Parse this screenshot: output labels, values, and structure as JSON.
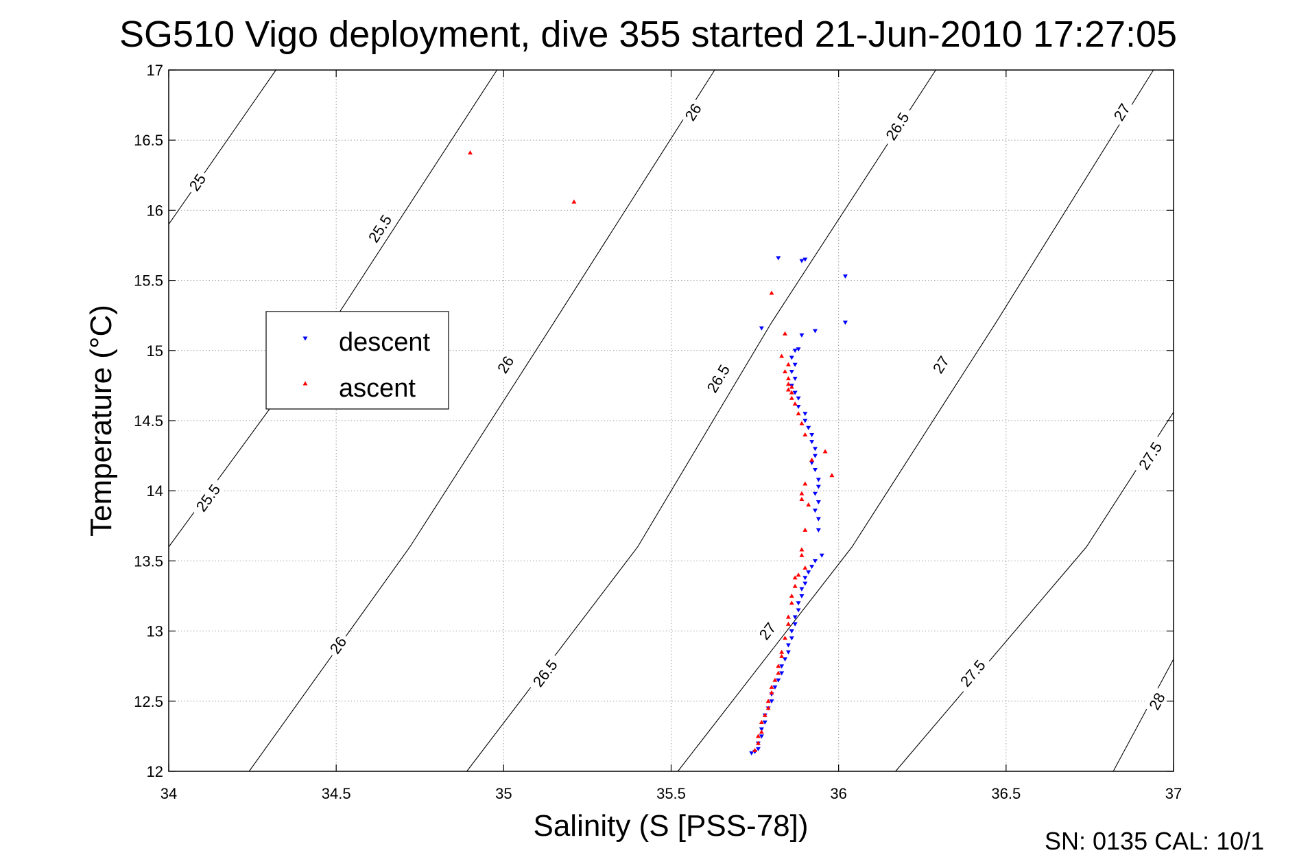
{
  "chart_data": {
    "type": "scatter",
    "title": "SG510 Vigo deployment, dive 355 started 21-Jun-2010 17:27:05",
    "xlabel": "Salinity (S [PSS-78])",
    "ylabel": "Temperature (°C)",
    "xlim": [
      34,
      37
    ],
    "ylim": [
      12,
      17
    ],
    "xticks": [
      34,
      34.5,
      35,
      35.5,
      36,
      36.5,
      37
    ],
    "xtick_labels": [
      "34",
      "34.5",
      "35",
      "35.5",
      "36",
      "36.5",
      "37"
    ],
    "yticks": [
      12,
      12.5,
      13,
      13.5,
      14,
      14.5,
      15,
      15.5,
      16,
      16.5,
      17
    ],
    "ytick_labels": [
      "12",
      "12.5",
      "13",
      "13.5",
      "14",
      "14.5",
      "15",
      "15.5",
      "16",
      "16.5",
      "17"
    ],
    "grid": true,
    "legend_position": "left, mid-height",
    "series": [
      {
        "name": "descent",
        "marker": "triangle-down",
        "color": "#0000ff",
        "points": [
          [
            35.82,
            15.66
          ],
          [
            35.9,
            15.65
          ],
          [
            35.89,
            15.64
          ],
          [
            36.02,
            15.53
          ],
          [
            35.93,
            15.14
          ],
          [
            36.02,
            15.2
          ],
          [
            35.77,
            15.16
          ],
          [
            35.89,
            15.11
          ],
          [
            35.88,
            15.01
          ],
          [
            35.87,
            15.0
          ],
          [
            35.86,
            14.95
          ],
          [
            35.87,
            14.9
          ],
          [
            35.86,
            14.85
          ],
          [
            35.87,
            14.8
          ],
          [
            35.86,
            14.75
          ],
          [
            35.87,
            14.7
          ],
          [
            35.88,
            14.66
          ],
          [
            35.88,
            14.6
          ],
          [
            35.9,
            14.55
          ],
          [
            35.9,
            14.5
          ],
          [
            35.91,
            14.45
          ],
          [
            35.92,
            14.4
          ],
          [
            35.92,
            14.35
          ],
          [
            35.93,
            14.3
          ],
          [
            35.93,
            14.25
          ],
          [
            35.92,
            14.2
          ],
          [
            35.93,
            14.15
          ],
          [
            35.94,
            14.08
          ],
          [
            35.94,
            14.03
          ],
          [
            35.93,
            13.98
          ],
          [
            35.94,
            13.92
          ],
          [
            35.93,
            13.86
          ],
          [
            35.94,
            13.8
          ],
          [
            35.94,
            13.72
          ],
          [
            35.95,
            13.54
          ],
          [
            35.93,
            13.5
          ],
          [
            35.92,
            13.46
          ],
          [
            35.91,
            13.42
          ],
          [
            35.9,
            13.38
          ],
          [
            35.9,
            13.34
          ],
          [
            35.89,
            13.3
          ],
          [
            35.89,
            13.25
          ],
          [
            35.88,
            13.2
          ],
          [
            35.88,
            13.15
          ],
          [
            35.87,
            13.1
          ],
          [
            35.87,
            13.05
          ],
          [
            35.86,
            13.0
          ],
          [
            35.86,
            12.95
          ],
          [
            35.85,
            12.9
          ],
          [
            35.85,
            12.85
          ],
          [
            35.84,
            12.8
          ],
          [
            35.83,
            12.75
          ],
          [
            35.83,
            12.7
          ],
          [
            35.82,
            12.65
          ],
          [
            35.81,
            12.6
          ],
          [
            35.8,
            12.55
          ],
          [
            35.8,
            12.5
          ],
          [
            35.79,
            12.45
          ],
          [
            35.78,
            12.4
          ],
          [
            35.78,
            12.35
          ],
          [
            35.77,
            12.3
          ],
          [
            35.77,
            12.25
          ],
          [
            35.76,
            12.2
          ],
          [
            35.76,
            12.16
          ],
          [
            35.75,
            12.14
          ],
          [
            35.74,
            12.13
          ]
        ]
      },
      {
        "name": "ascent",
        "marker": "triangle-up",
        "color": "#ff0000",
        "points": [
          [
            34.9,
            16.41
          ],
          [
            35.21,
            16.06
          ],
          [
            35.8,
            15.41
          ],
          [
            35.84,
            15.12
          ],
          [
            35.83,
            14.96
          ],
          [
            35.85,
            14.9
          ],
          [
            35.84,
            14.85
          ],
          [
            35.85,
            14.8
          ],
          [
            35.85,
            14.76
          ],
          [
            35.86,
            14.74
          ],
          [
            35.85,
            14.72
          ],
          [
            35.86,
            14.7
          ],
          [
            35.86,
            14.66
          ],
          [
            35.87,
            14.62
          ],
          [
            35.88,
            14.55
          ],
          [
            35.89,
            14.48
          ],
          [
            35.9,
            14.4
          ],
          [
            35.96,
            14.28
          ],
          [
            35.92,
            14.22
          ],
          [
            35.98,
            14.11
          ],
          [
            35.9,
            14.05
          ],
          [
            35.89,
            13.98
          ],
          [
            35.89,
            13.94
          ],
          [
            35.91,
            13.9
          ],
          [
            35.9,
            13.72
          ],
          [
            35.89,
            13.58
          ],
          [
            35.89,
            13.54
          ],
          [
            35.9,
            13.45
          ],
          [
            35.88,
            13.4
          ],
          [
            35.87,
            13.38
          ],
          [
            35.87,
            13.32
          ],
          [
            35.86,
            13.25
          ],
          [
            35.86,
            13.2
          ],
          [
            35.85,
            13.1
          ],
          [
            35.85,
            13.05
          ],
          [
            35.84,
            12.95
          ],
          [
            35.83,
            12.85
          ],
          [
            35.83,
            12.82
          ],
          [
            35.82,
            12.75
          ],
          [
            35.82,
            12.7
          ],
          [
            35.81,
            12.65
          ],
          [
            35.8,
            12.6
          ],
          [
            35.8,
            12.56
          ],
          [
            35.79,
            12.5
          ],
          [
            35.79,
            12.45
          ],
          [
            35.78,
            12.4
          ],
          [
            35.77,
            12.35
          ],
          [
            35.77,
            12.28
          ],
          [
            35.76,
            12.25
          ],
          [
            35.76,
            12.2
          ],
          [
            35.75,
            12.15
          ]
        ]
      }
    ],
    "density_contours": [
      {
        "label": "25",
        "points": [
          [
            34.0,
            15.9
          ],
          [
            34.32,
            17.0
          ]
        ],
        "labels_at": [
          [
            34.085,
            16.2
          ]
        ]
      },
      {
        "label": "25.5",
        "points": [
          [
            34.0,
            13.6
          ],
          [
            34.49,
            15.2
          ],
          [
            34.98,
            17.0
          ]
        ],
        "labels_at": [
          [
            34.117,
            13.95
          ],
          [
            34.63,
            15.87
          ]
        ]
      },
      {
        "label": "26",
        "points": [
          [
            34.24,
            12.0
          ],
          [
            34.72,
            13.6
          ],
          [
            35.15,
            15.2
          ],
          [
            35.63,
            17.0
          ]
        ],
        "labels_at": [
          [
            34.505,
            12.9
          ],
          [
            35.005,
            14.9
          ],
          [
            35.565,
            16.7
          ]
        ]
      },
      {
        "label": "26.5",
        "points": [
          [
            34.89,
            12.0
          ],
          [
            35.4,
            13.6
          ],
          [
            35.8,
            15.2
          ],
          [
            36.29,
            17.0
          ]
        ],
        "labels_at": [
          [
            35.123,
            12.7
          ],
          [
            35.64,
            14.8
          ],
          [
            36.175,
            16.6
          ]
        ]
      },
      {
        "label": "27",
        "points": [
          [
            35.52,
            12.0
          ],
          [
            36.04,
            13.6
          ],
          [
            36.47,
            15.2
          ],
          [
            36.94,
            17.0
          ]
        ],
        "labels_at": [
          [
            35.787,
            13.0
          ],
          [
            36.305,
            14.9
          ],
          [
            36.845,
            16.7
          ]
        ]
      },
      {
        "label": "27.5",
        "points": [
          [
            36.17,
            12.0
          ],
          [
            36.74,
            13.6
          ],
          [
            37.0,
            14.56
          ]
        ],
        "labels_at": [
          [
            36.4,
            12.7
          ],
          [
            36.93,
            14.25
          ]
        ]
      },
      {
        "label": "28",
        "points": [
          [
            36.82,
            12.0
          ],
          [
            37.0,
            12.8
          ]
        ],
        "labels_at": [
          [
            36.95,
            12.5
          ]
        ]
      }
    ]
  },
  "footer": {
    "text": "SN: 0135  CAL: 10/1"
  }
}
